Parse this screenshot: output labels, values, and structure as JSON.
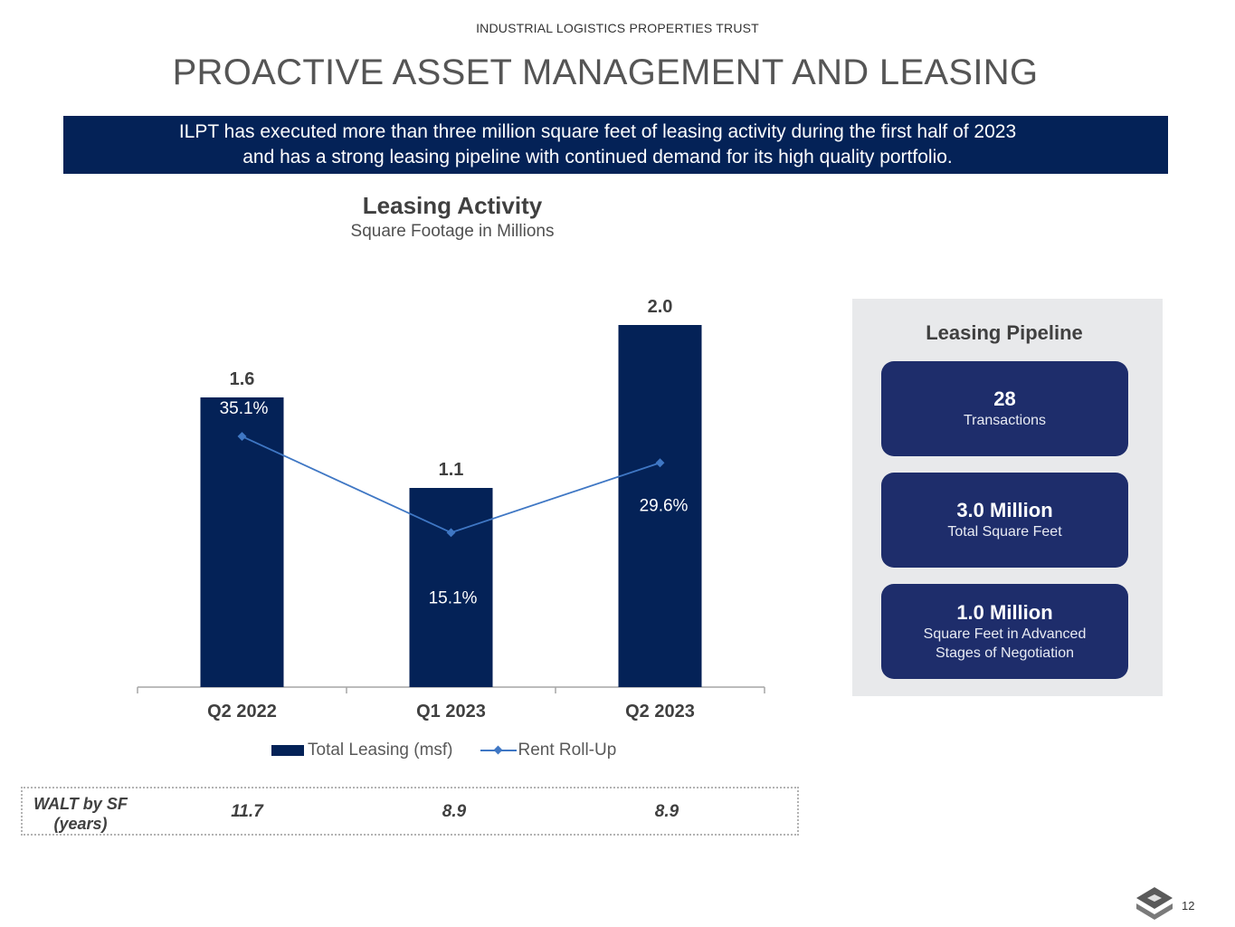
{
  "header": {
    "company": "INDUSTRIAL LOGISTICS PROPERTIES TRUST",
    "title": "PROACTIVE ASSET MANAGEMENT AND LEASING"
  },
  "banner": {
    "line1": "ILPT has executed more than three million square feet of leasing activity during the first half of 2023",
    "line2": "and has a strong leasing pipeline with continued demand for its high quality portfolio."
  },
  "colors": {
    "navy": "#042257",
    "card": "#1e2d6b",
    "line": "#3f77c4",
    "panel": "#e8e9eb"
  },
  "chart_data": {
    "type": "bar",
    "title": "Leasing Activity",
    "subtitle": "Square Footage in Millions",
    "categories": [
      "Q2 2022",
      "Q1 2023",
      "Q2 2023"
    ],
    "series": [
      {
        "name": "Total Leasing (msf)",
        "type": "bar",
        "values": [
          1.6,
          1.1,
          2.0
        ],
        "labels": [
          "1.6",
          "1.1",
          "2.0"
        ]
      },
      {
        "name": "Rent Roll-Up",
        "type": "line",
        "values": [
          35.1,
          15.1,
          29.6
        ],
        "labels": [
          "35.1%",
          "15.1%",
          "29.6%"
        ]
      }
    ],
    "xlabel": "",
    "ylabel": "",
    "bar_ylim": [
      0,
      2.1
    ],
    "line_ylim": [
      -17,
      62
    ],
    "legend_position": "bottom"
  },
  "walt": {
    "label_line1": "WALT by SF",
    "label_line2": "(years)",
    "values": [
      "11.7",
      "8.9",
      "8.9"
    ]
  },
  "pipeline": {
    "title": "Leasing Pipeline",
    "cards": [
      {
        "value": "28",
        "label": "Transactions"
      },
      {
        "value": "3.0 Million",
        "label": "Total Square Feet"
      },
      {
        "value": "1.0 Million",
        "label": "Square Feet in Advanced Stages of Negotiation"
      }
    ]
  },
  "footer": {
    "page_number": "12",
    "logo_icon": "company-logo-icon"
  }
}
